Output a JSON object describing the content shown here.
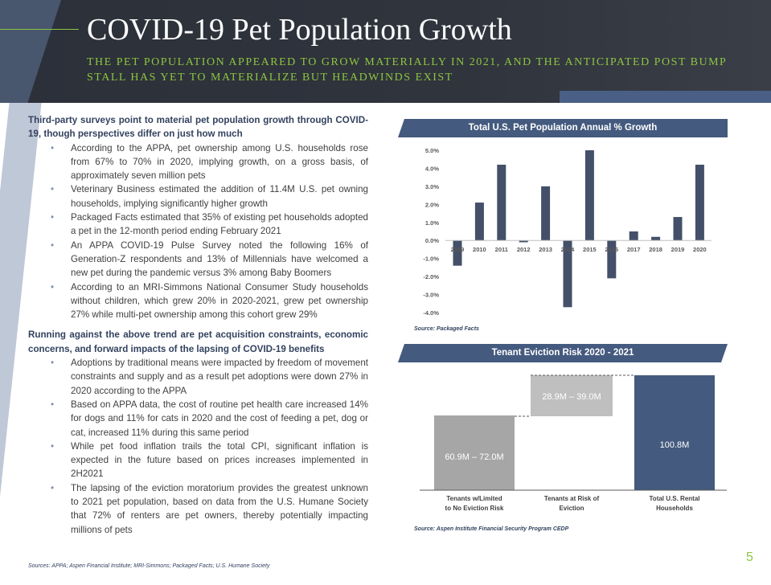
{
  "header": {
    "title": "COVID-19 Pet Population Growth",
    "subtitle": "THE PET POPULATION APPEARED TO GROW MATERIALLY IN 2021, AND THE ANTICIPATED POST BUMP STALL HAS YET TO MATERIALIZE BUT HEADWINDS EXIST"
  },
  "sections": [
    {
      "heading": "Third-party surveys point to material pet population growth through COVID-19, though perspectives differ on just how much",
      "bullets": [
        "According to the APPA, pet ownership among U.S. households rose from 67% to 70% in 2020, implying growth, on a gross basis, of approximately seven million pets",
        "Veterinary Business estimated the addition of 11.4M U.S. pet owning households, implying significantly higher growth",
        "Packaged Facts estimated that 35% of existing pet households adopted a pet in the 12-month period ending February 2021",
        "An APPA COVID-19 Pulse Survey noted the following 16% of Generation-Z respondents and 13% of Millennials have welcomed a new pet during the pandemic versus 3% among Baby Boomers",
        "According to an MRI-Simmons National Consumer Study households without children, which grew 20% in 2020-2021, grew pet ownership 27% while multi-pet ownership among this cohort grew 29%"
      ]
    },
    {
      "heading": "Running against the above trend are pet acquisition constraints, economic concerns, and forward impacts of the lapsing of COVID-19 benefits",
      "bullets": [
        "Adoptions by traditional means were impacted by freedom of movement constraints and supply and as a result pet adoptions were down 27% in 2020 according to the APPA",
        "Based on APPA data, the cost of routine pet health care increased 14% for dogs and 11% for cats in 2020 and the cost of feeding a pet, dog or cat, increased 11% during this same period",
        "While pet food inflation trails the total CPI, significant inflation is expected in the future based on prices increases implemented in 2H2021",
        "The lapsing of the eviction moratorium provides the greatest unknown to 2021 pet population, based on data from the U.S. Humane Society that 72% of renters are pet owners, thereby potentially impacting millions of pets"
      ]
    }
  ],
  "sources": "Sources: APPA; Aspen Financial Institute; MRI-Simmons; Packaged Facts; U.S. Humane Society",
  "page_number": "5",
  "colors": {
    "navy": "#445a7e",
    "accent_green": "#8dc63f",
    "gray_dark": "#a6a6a6",
    "gray_light": "#bfbfbf"
  },
  "chart_data": [
    {
      "type": "bar",
      "title": "Total U.S. Pet Population Annual % Growth",
      "categories": [
        "2009",
        "2010",
        "2011",
        "2012",
        "2013",
        "2014",
        "2015",
        "2016",
        "2017",
        "2018",
        "2019",
        "2020"
      ],
      "values": [
        -1.4,
        2.1,
        4.2,
        -0.1,
        3.0,
        -3.7,
        5.0,
        -2.1,
        0.5,
        0.2,
        1.3,
        4.2
      ],
      "ylim": [
        -4.0,
        5.0
      ],
      "yticks": [
        "5.0%",
        "4.0%",
        "3.0%",
        "2.0%",
        "1.0%",
        "0.0%",
        "-1.0%",
        "-2.0%",
        "-3.0%",
        "-4.0%"
      ],
      "grid": false,
      "source": "Source: Packaged Facts"
    },
    {
      "type": "bar",
      "title": "Tenant Eviction Risk 2020 - 2021",
      "categories": [
        "Tenants w/Limited to No Eviction Risk",
        "Tenants at Risk of Eviction",
        "Total U.S. Rental Households"
      ],
      "data_labels": [
        "60.9M – 72.0M",
        "28.9M – 39.0M",
        "100.8M"
      ],
      "values_millions": [
        [
          60.9,
          72.0
        ],
        [
          28.9,
          39.0
        ],
        [
          100.8
        ]
      ],
      "source": "Source: Aspen Institute Financial Security Program CEDP"
    }
  ]
}
